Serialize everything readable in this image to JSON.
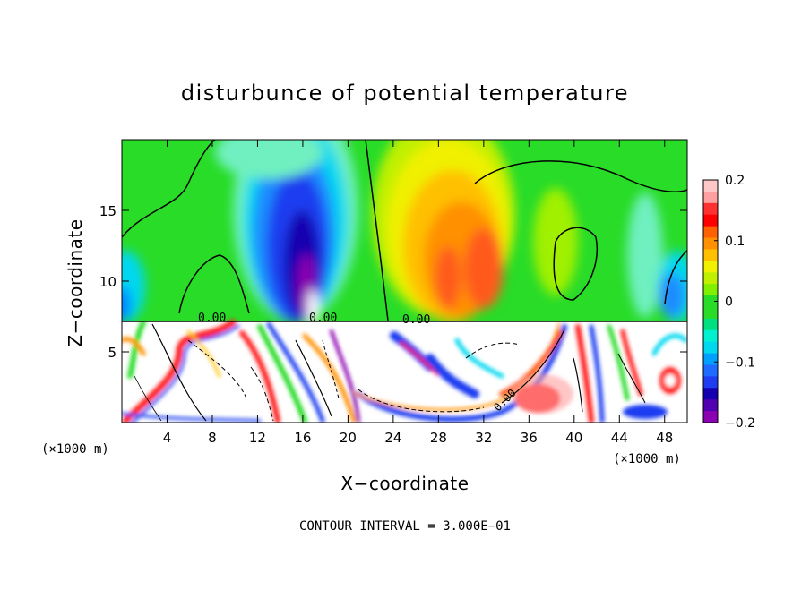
{
  "chart_data": {
    "type": "heatmap",
    "title": "disturbunce of potential temperature",
    "xlabel": "X−coordinate",
    "ylabel": "Z−coordinate",
    "x_unit_left": "(×1000 m)",
    "x_unit_right": "(×1000 m)",
    "footer": "CONTOUR INTERVAL = 3.000E−01",
    "xlim": [
      0,
      50
    ],
    "ylim": [
      0,
      20
    ],
    "x_ticks": [
      4,
      8,
      12,
      16,
      20,
      24,
      28,
      32,
      36,
      40,
      44,
      48
    ],
    "y_ticks": [
      5,
      10,
      15
    ],
    "colorbar": {
      "range": [
        -0.2,
        0.2
      ],
      "ticks": [
        "0.2",
        "0.1",
        "0",
        "−0.1",
        "−0.2"
      ],
      "tick_values": [
        0.2,
        0.1,
        0,
        -0.1,
        -0.2
      ]
    },
    "contour_labels": [
      {
        "x": 8,
        "z": 7.3,
        "text": "0.00"
      },
      {
        "x": 18,
        "z": 7.3,
        "text": "0.00"
      },
      {
        "x": 26,
        "z": 7.2,
        "text": "0.00"
      },
      {
        "x": 34,
        "z": 2.0,
        "text": "0.00"
      }
    ],
    "colors": {
      "purple": "#8b00b0",
      "blue": "#1e3cf0",
      "cyan": "#00d8f0",
      "green": "#28dc28",
      "yellow": "#f0f000",
      "orange": "#ff9000",
      "red": "#ff1e1e",
      "pink": "#ffa0a0"
    }
  }
}
